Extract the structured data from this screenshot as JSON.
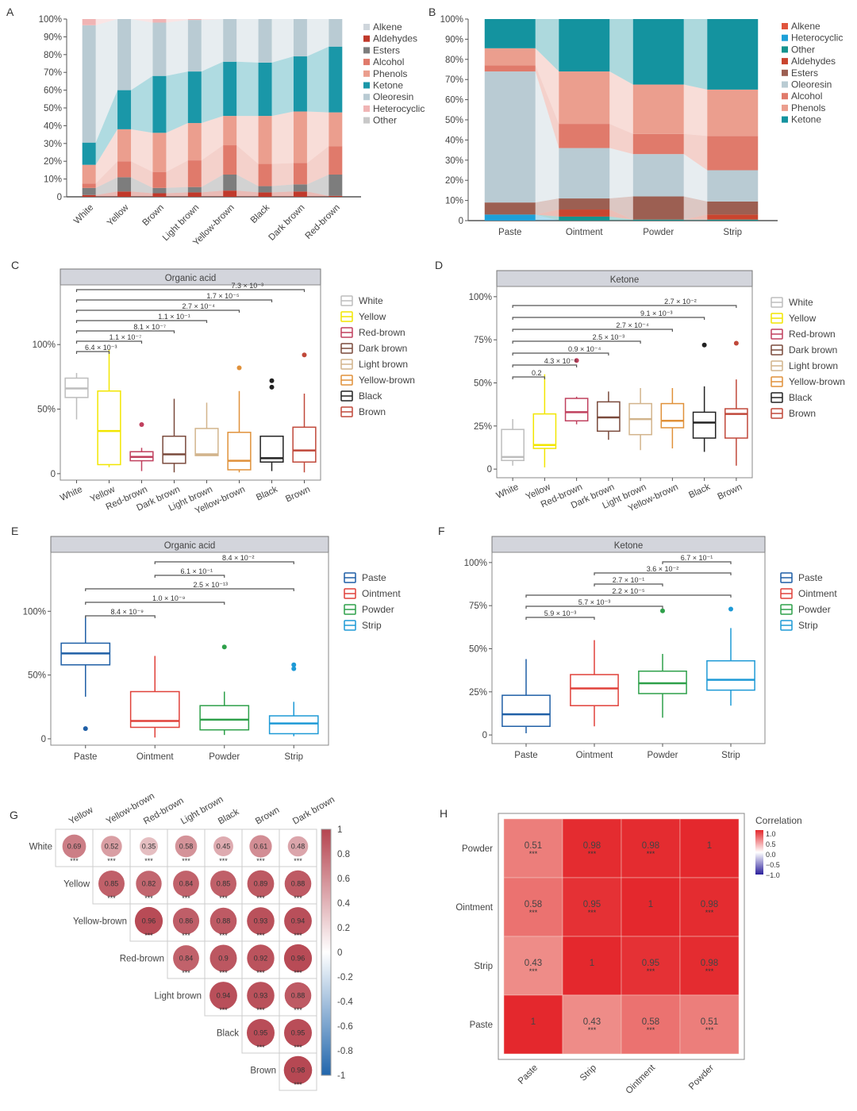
{
  "panels": {
    "A": "A",
    "B": "B",
    "C": "C",
    "D": "D",
    "E": "E",
    "F": "F",
    "G": "G",
    "H": "H"
  },
  "chart_data": [
    {
      "id": "A",
      "type": "bar",
      "stacked": true,
      "normalized": true,
      "categories": [
        "White",
        "Yellow",
        "Brown",
        "Light brown",
        "Yellow-brown",
        "Black",
        "Dark brown",
        "Red-brown"
      ],
      "yticks": [
        "0",
        "10%",
        "20%",
        "30%",
        "40%",
        "50%",
        "60%",
        "70%",
        "80%",
        "90%",
        "100%"
      ],
      "ylim": [
        0,
        100
      ],
      "series_bottom_to_top": [
        {
          "name": "Aldehydes",
          "color": "#c0392b",
          "values": [
            1,
            3,
            2,
            2.5,
            3.5,
            2.5,
            3,
            0.5
          ]
        },
        {
          "name": "Esters",
          "color": "#7d7d7d",
          "values": [
            4,
            8,
            3,
            3,
            9,
            3.5,
            4,
            12
          ]
        },
        {
          "name": "Other",
          "color": "#cfcfcf",
          "values": [
            0,
            0,
            0,
            0,
            0,
            0,
            0,
            0
          ]
        },
        {
          "name": "Alcohol",
          "color": "#e07a6b",
          "values": [
            2.5,
            9,
            9,
            15,
            16.5,
            12.5,
            12,
            16
          ]
        },
        {
          "name": "Phenols",
          "color": "#eb9e8e",
          "values": [
            10.5,
            18,
            22,
            21,
            16.5,
            27,
            29,
            19
          ]
        },
        {
          "name": "Ketone",
          "color": "#1a97a8",
          "values": [
            12.5,
            22,
            32,
            29,
            30.5,
            30,
            31,
            37
          ]
        },
        {
          "name": "Oleoresin",
          "color": "#b9cbd3",
          "values": [
            66,
            40,
            30,
            29,
            24,
            24.5,
            21,
            15.5
          ]
        },
        {
          "name": "Heterocyclic",
          "color": "#f0b4b4",
          "values": [
            3.5,
            0,
            2,
            0.5,
            0,
            0,
            0,
            0
          ]
        },
        {
          "name": "Alkene",
          "color": "#dfe5ea",
          "values": [
            0,
            0,
            0,
            0,
            0,
            0,
            0,
            0
          ]
        }
      ],
      "legend": [
        "Alkene",
        "Aldehydes",
        "Esters",
        "Alcohol",
        "Phenols",
        "Ketone",
        "Oleoresin",
        "Heterocyclic",
        "Other"
      ],
      "legend_colors": [
        "#cfd6dc",
        "#c0392b",
        "#7d7d7d",
        "#e07a6b",
        "#eb9e8e",
        "#1a97a8",
        "#b9cbd3",
        "#f0b4b4",
        "#c8c8c8"
      ],
      "legend_position": "right"
    },
    {
      "id": "B",
      "type": "bar",
      "stacked": true,
      "normalized": true,
      "categories": [
        "Paste",
        "Ointment",
        "Powder",
        "Strip"
      ],
      "yticks": [
        "0",
        "10%",
        "20%",
        "30%",
        "40%",
        "50%",
        "60%",
        "70%",
        "80%",
        "90%",
        "100%"
      ],
      "ylim": [
        0,
        100
      ],
      "series_bottom_to_top": [
        {
          "name": "Heterocyclic",
          "color": "#1ea0d8",
          "values": [
            3,
            0,
            0,
            0
          ]
        },
        {
          "name": "Other",
          "color": "#16938f",
          "values": [
            0,
            2,
            0.5,
            0.5
          ]
        },
        {
          "name": "Aldehydes",
          "color": "#c9452f",
          "values": [
            0,
            3.5,
            0,
            2.5
          ]
        },
        {
          "name": "Esters",
          "color": "#9c5f52",
          "values": [
            6,
            5.5,
            11.5,
            6.5
          ]
        },
        {
          "name": "Oleoresin",
          "color": "#b9cbd3",
          "values": [
            65,
            25,
            21,
            15.5
          ]
        },
        {
          "name": "Alcohol",
          "color": "#e07a6b",
          "values": [
            3,
            12,
            10,
            17
          ]
        },
        {
          "name": "Phenols",
          "color": "#eb9e8e",
          "values": [
            8.5,
            26,
            24.5,
            23
          ]
        },
        {
          "name": "Ketone",
          "color": "#14939f",
          "values": [
            14.5,
            26,
            32.5,
            35
          ]
        },
        {
          "name": "Alkene",
          "color": "#e0553d",
          "values": [
            0,
            0,
            0,
            0
          ]
        }
      ],
      "legend": [
        "Alkene",
        "Heterocyclic",
        "Other",
        "Aldehydes",
        "Esters",
        "Oleoresin",
        "Alcohol",
        "Phenols",
        "Ketone"
      ],
      "legend_colors": [
        "#e0553d",
        "#1ea0d8",
        "#16938f",
        "#c9452f",
        "#9c5f52",
        "#b9cbd3",
        "#e07a6b",
        "#eb9e8e",
        "#14939f"
      ],
      "legend_position": "right"
    },
    {
      "id": "C",
      "type": "box",
      "title": "Organic acid",
      "categories": [
        "White",
        "Yellow",
        "Red-brown",
        "Dark brown",
        "Light brown",
        "Yellow-brown",
        "Black",
        "Brown"
      ],
      "colors": [
        "#bdbdbd",
        "#f2e600",
        "#c0405e",
        "#7a4a3c",
        "#d2b48c",
        "#e0913a",
        "#222222",
        "#c0483a"
      ],
      "yticks": [
        "0",
        "50%",
        "100%"
      ],
      "ylim": [
        -5,
        145
      ],
      "boxes": [
        {
          "min": 42,
          "q1": 59,
          "median": 66,
          "q3": 74,
          "max": 78,
          "outliers": []
        },
        {
          "min": 5,
          "q1": 7,
          "median": 33,
          "q3": 64,
          "max": 96,
          "outliers": []
        },
        {
          "min": 2,
          "q1": 10,
          "median": 13,
          "q3": 17,
          "max": 20,
          "outliers": [
            38
          ]
        },
        {
          "min": 1,
          "q1": 8,
          "median": 15,
          "q3": 29,
          "max": 58,
          "outliers": []
        },
        {
          "min": 14,
          "q1": 14,
          "median": 15,
          "q3": 35,
          "max": 55,
          "outliers": []
        },
        {
          "min": 1,
          "q1": 3,
          "median": 10,
          "q3": 32,
          "max": 64,
          "outliers": [
            82
          ]
        },
        {
          "min": 2,
          "q1": 9,
          "median": 12,
          "q3": 29,
          "max": 29,
          "outliers": [
            67,
            72
          ]
        },
        {
          "min": 1,
          "q1": 9,
          "median": 18,
          "q3": 36,
          "max": 62,
          "outliers": [
            92
          ]
        }
      ],
      "comparisons": [
        {
          "from": 0,
          "to": 1,
          "label": "6.4 × 10⁻³"
        },
        {
          "from": 0,
          "to": 2,
          "label": "1.1 × 10⁻⁷"
        },
        {
          "from": 0,
          "to": 3,
          "label": "8.1 × 10⁻⁷"
        },
        {
          "from": 0,
          "to": 4,
          "label": "1.1 × 10⁻¹"
        },
        {
          "from": 0,
          "to": 5,
          "label": "2.7 × 10⁻⁴"
        },
        {
          "from": 0,
          "to": 6,
          "label": "1.7 × 10⁻⁵"
        },
        {
          "from": 0,
          "to": 7,
          "label": "7.3 × 10⁻³"
        }
      ],
      "legend_position": "right"
    },
    {
      "id": "D",
      "type": "box",
      "title": "Ketone",
      "categories": [
        "White",
        "Yellow",
        "Red-brown",
        "Dark brown",
        "Light brown",
        "Yellow-brown",
        "Black",
        "Brown"
      ],
      "colors": [
        "#bdbdbd",
        "#f2e600",
        "#c0405e",
        "#7a4a3c",
        "#d2b48c",
        "#e0913a",
        "#222222",
        "#c0483a"
      ],
      "yticks": [
        "0",
        "25%",
        "50%",
        "75%",
        "100%"
      ],
      "ylim": [
        -5,
        105
      ],
      "boxes": [
        {
          "min": 2,
          "q1": 5,
          "median": 7,
          "q3": 23,
          "max": 29,
          "outliers": []
        },
        {
          "min": 1,
          "q1": 12,
          "median": 14,
          "q3": 32,
          "max": 55,
          "outliers": []
        },
        {
          "min": 26,
          "q1": 28,
          "median": 33,
          "q3": 41,
          "max": 42,
          "outliers": [
            63
          ]
        },
        {
          "min": 17,
          "q1": 22,
          "median": 30,
          "q3": 39,
          "max": 45,
          "outliers": []
        },
        {
          "min": 11,
          "q1": 20,
          "median": 29,
          "q3": 38,
          "max": 47,
          "outliers": []
        },
        {
          "min": 12,
          "q1": 24,
          "median": 28,
          "q3": 38,
          "max": 47,
          "outliers": []
        },
        {
          "min": 10,
          "q1": 18,
          "median": 27,
          "q3": 33,
          "max": 48,
          "outliers": [
            72
          ]
        },
        {
          "min": 2,
          "q1": 18,
          "median": 32,
          "q3": 35,
          "max": 52,
          "outliers": [
            73
          ]
        }
      ],
      "comparisons": [
        {
          "from": 0,
          "to": 1,
          "label": "0.2"
        },
        {
          "from": 0,
          "to": 2,
          "label": "4.3 × 10⁻⁴"
        },
        {
          "from": 0,
          "to": 3,
          "label": "0.9 × 10⁻⁴"
        },
        {
          "from": 0,
          "to": 4,
          "label": "2.5 × 10⁻³"
        },
        {
          "from": 0,
          "to": 5,
          "label": "2.7 × 10⁻⁴"
        },
        {
          "from": 0,
          "to": 6,
          "label": "9.1 × 10⁻³"
        },
        {
          "from": 0,
          "to": 7,
          "label": "2.7 × 10⁻²"
        }
      ],
      "legend_position": "right"
    },
    {
      "id": "E",
      "type": "box",
      "title": "Organic acid",
      "categories": [
        "Paste",
        "Ointment",
        "Powder",
        "Strip"
      ],
      "colors": [
        "#1f5fa6",
        "#e0413a",
        "#2ea04a",
        "#1e9ad6"
      ],
      "yticks": [
        "0",
        "50%",
        "100%"
      ],
      "ylim": [
        -5,
        145
      ],
      "boxes": [
        {
          "min": 33,
          "q1": 58,
          "median": 67,
          "q3": 75,
          "max": 96,
          "outliers": [
            8
          ]
        },
        {
          "min": 1,
          "q1": 9,
          "median": 14,
          "q3": 37,
          "max": 65,
          "outliers": []
        },
        {
          "min": 3,
          "q1": 7,
          "median": 15,
          "q3": 26,
          "max": 37,
          "outliers": [
            72
          ]
        },
        {
          "min": 2,
          "q1": 4,
          "median": 12,
          "q3": 18,
          "max": 29,
          "outliers": [
            55,
            58
          ]
        }
      ],
      "comparisons": [
        {
          "from": 0,
          "to": 1,
          "label": "8.4 × 10⁻⁹"
        },
        {
          "from": 0,
          "to": 2,
          "label": "1.0 × 10⁻⁹"
        },
        {
          "from": 0,
          "to": 3,
          "label": "2.5 × 10⁻¹³"
        },
        {
          "from": 1,
          "to": 2,
          "label": "6.1 × 10⁻¹"
        },
        {
          "from": 1,
          "to": 3,
          "label": "8.4 × 10⁻²"
        }
      ],
      "legend_position": "right"
    },
    {
      "id": "F",
      "type": "box",
      "title": "Ketone",
      "categories": [
        "Paste",
        "Ointment",
        "Powder",
        "Strip"
      ],
      "colors": [
        "#1f5fa6",
        "#e0413a",
        "#2ea04a",
        "#1e9ad6"
      ],
      "yticks": [
        "0",
        "25%",
        "50%",
        "75%",
        "100%"
      ],
      "ylim": [
        -5,
        105
      ],
      "boxes": [
        {
          "min": 1,
          "q1": 5,
          "median": 12,
          "q3": 23,
          "max": 44,
          "outliers": []
        },
        {
          "min": 5,
          "q1": 17,
          "median": 27,
          "q3": 35,
          "max": 55,
          "outliers": []
        },
        {
          "min": 10,
          "q1": 24,
          "median": 30,
          "q3": 37,
          "max": 47,
          "outliers": [
            72
          ]
        },
        {
          "min": 17,
          "q1": 26,
          "median": 32,
          "q3": 43,
          "max": 62,
          "outliers": [
            73
          ]
        }
      ],
      "comparisons": [
        {
          "from": 0,
          "to": 1,
          "label": "5.9 × 10⁻³"
        },
        {
          "from": 0,
          "to": 2,
          "label": "5.7 × 10⁻³"
        },
        {
          "from": 0,
          "to": 3,
          "label": "2.2 × 10⁻⁵"
        },
        {
          "from": 1,
          "to": 2,
          "label": "2.7 × 10⁻¹"
        },
        {
          "from": 1,
          "to": 3,
          "label": "3.6 × 10⁻²"
        },
        {
          "from": 2,
          "to": 3,
          "label": "6.7 × 10⁻¹"
        }
      ],
      "legend_position": "right"
    },
    {
      "id": "G",
      "type": "heatmap",
      "style": "upper-triangle circle correlogram",
      "rows": [
        "White",
        "Yellow",
        "Yellow-brown",
        "Red-brown",
        "Light brown",
        "Black",
        "Brown"
      ],
      "cols": [
        "Yellow",
        "Yellow-brown",
        "Red-brown",
        "Light brown",
        "Black",
        "Brown",
        "Dark brown"
      ],
      "values": [
        [
          0.69,
          0.52,
          0.35,
          0.58,
          0.45,
          0.61,
          0.48
        ],
        [
          null,
          0.85,
          0.82,
          0.84,
          0.85,
          0.89,
          0.88
        ],
        [
          null,
          null,
          0.96,
          0.86,
          0.88,
          0.93,
          0.94
        ],
        [
          null,
          null,
          null,
          0.84,
          0.9,
          0.92,
          0.96
        ],
        [
          null,
          null,
          null,
          null,
          0.94,
          0.93,
          0.88
        ],
        [
          null,
          null,
          null,
          null,
          null,
          0.95,
          0.95
        ],
        [
          null,
          null,
          null,
          null,
          null,
          null,
          0.98
        ]
      ],
      "significance": "***",
      "colorbar_ticks": [
        "1",
        "0.8",
        "0.6",
        "0.4",
        "0.2",
        "0",
        "-0.2",
        "-0.4",
        "-0.6",
        "-0.8",
        "-1"
      ],
      "colorbar_range": [
        -1,
        1
      ],
      "legend_position": "right"
    },
    {
      "id": "H",
      "type": "heatmap",
      "x": [
        "Paste",
        "Strip",
        "Ointment",
        "Powder"
      ],
      "y_top_to_bottom": [
        "Powder",
        "Ointment",
        "Strip",
        "Paste"
      ],
      "values": [
        [
          0.51,
          0.98,
          0.98,
          1
        ],
        [
          0.58,
          0.95,
          1,
          0.98
        ],
        [
          0.43,
          1,
          0.95,
          0.98
        ],
        [
          1,
          0.43,
          0.58,
          0.51
        ]
      ],
      "significance": "***",
      "legend_title": "Correlation",
      "colorbar_ticks": [
        "1.0",
        "0.5",
        "0.0",
        "−0.5",
        "−1.0"
      ],
      "colorbar_range": [
        -1,
        1
      ],
      "legend_position": "right"
    }
  ]
}
